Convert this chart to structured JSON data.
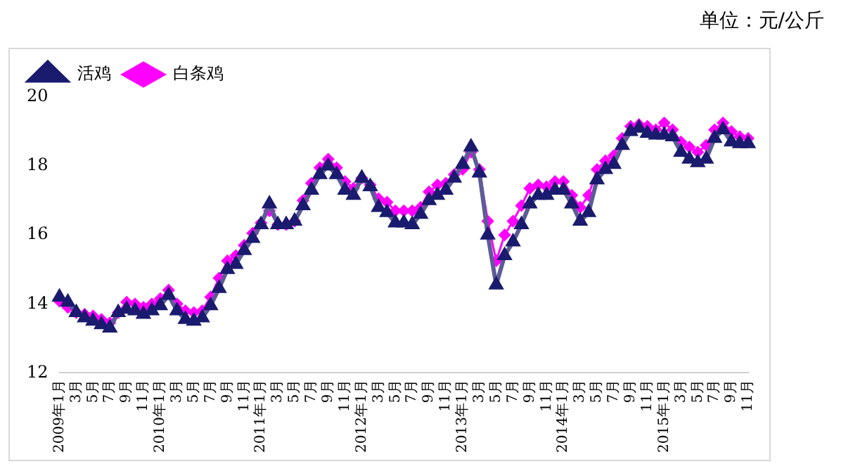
{
  "chart_data": {
    "type": "line",
    "title": "单位：元/公斤",
    "categories": [
      "2009年1月",
      null,
      "3月",
      null,
      "5月",
      null,
      "7月",
      null,
      "9月",
      null,
      "11月",
      null,
      "2010年1月",
      null,
      "3月",
      null,
      "5月",
      null,
      "7月",
      null,
      "9月",
      null,
      "11月",
      null,
      "2011年1月",
      null,
      "3月",
      null,
      "5月",
      null,
      "7月",
      null,
      "9月",
      null,
      "11月",
      null,
      "2012年1月",
      null,
      "3月",
      null,
      "5月",
      null,
      "7月",
      null,
      "9月",
      null,
      "11月",
      null,
      "2013年1月",
      null,
      "3月",
      null,
      "5月",
      null,
      "7月",
      null,
      "9月",
      null,
      "11月",
      null,
      "2014年1月",
      null,
      "3月",
      null,
      "5月",
      null,
      "7月",
      null,
      "9月",
      null,
      "11月",
      null,
      "2015年1月",
      null,
      "3月",
      null,
      "5月",
      null,
      "7月",
      null,
      "9月",
      null,
      "11月"
    ],
    "series": [
      {
        "name": "活鸡",
        "color": "#1a1a6e",
        "marker": "triangle",
        "values": [
          14.2,
          14.05,
          13.75,
          13.6,
          13.5,
          13.4,
          13.3,
          13.75,
          13.85,
          13.8,
          13.7,
          13.8,
          13.95,
          14.25,
          13.8,
          13.55,
          13.5,
          13.6,
          13.95,
          14.45,
          15.0,
          15.15,
          15.55,
          15.9,
          16.3,
          16.9,
          16.3,
          16.3,
          16.4,
          16.85,
          17.3,
          17.75,
          18.0,
          17.75,
          17.3,
          17.15,
          17.65,
          17.4,
          16.8,
          16.65,
          16.35,
          16.35,
          16.3,
          16.6,
          17.0,
          17.15,
          17.3,
          17.65,
          18.05,
          18.55,
          17.8,
          16.0,
          14.55,
          15.4,
          15.8,
          16.3,
          16.9,
          17.15,
          17.15,
          17.3,
          17.3,
          16.9,
          16.4,
          16.65,
          17.6,
          17.9,
          18.05,
          18.6,
          19.0,
          19.1,
          18.95,
          18.9,
          18.9,
          18.85,
          18.4,
          18.2,
          18.1,
          18.2,
          18.8,
          19.05,
          18.7,
          18.65,
          18.65
        ]
      },
      {
        "name": "白条鸡",
        "color": "#ff00ff",
        "marker": "diamond",
        "values": [
          14.08,
          13.9,
          13.75,
          13.7,
          13.65,
          13.55,
          13.45,
          13.75,
          14.05,
          14.0,
          13.9,
          14.0,
          14.15,
          14.4,
          14.0,
          13.8,
          13.75,
          13.8,
          14.2,
          14.75,
          15.25,
          15.4,
          15.7,
          16.05,
          16.35,
          16.7,
          16.3,
          16.3,
          16.4,
          17.0,
          17.5,
          17.95,
          18.2,
          17.95,
          17.55,
          17.35,
          17.65,
          17.45,
          17.05,
          16.95,
          16.7,
          16.7,
          16.7,
          16.8,
          17.25,
          17.45,
          17.5,
          17.75,
          17.9,
          18.4,
          17.9,
          16.4,
          15.25,
          16.0,
          16.4,
          16.85,
          17.35,
          17.45,
          17.4,
          17.55,
          17.55,
          17.15,
          16.8,
          17.15,
          17.9,
          18.15,
          18.3,
          18.8,
          19.15,
          19.2,
          19.15,
          19.05,
          19.25,
          19.05,
          18.7,
          18.55,
          18.4,
          18.6,
          19.05,
          19.25,
          19.0,
          18.85,
          18.8
        ]
      }
    ],
    "ylim": [
      12,
      20
    ],
    "yticks": [
      12,
      14,
      16,
      18,
      20
    ],
    "grid": false,
    "legend": "top left",
    "line_style": "solid"
  }
}
